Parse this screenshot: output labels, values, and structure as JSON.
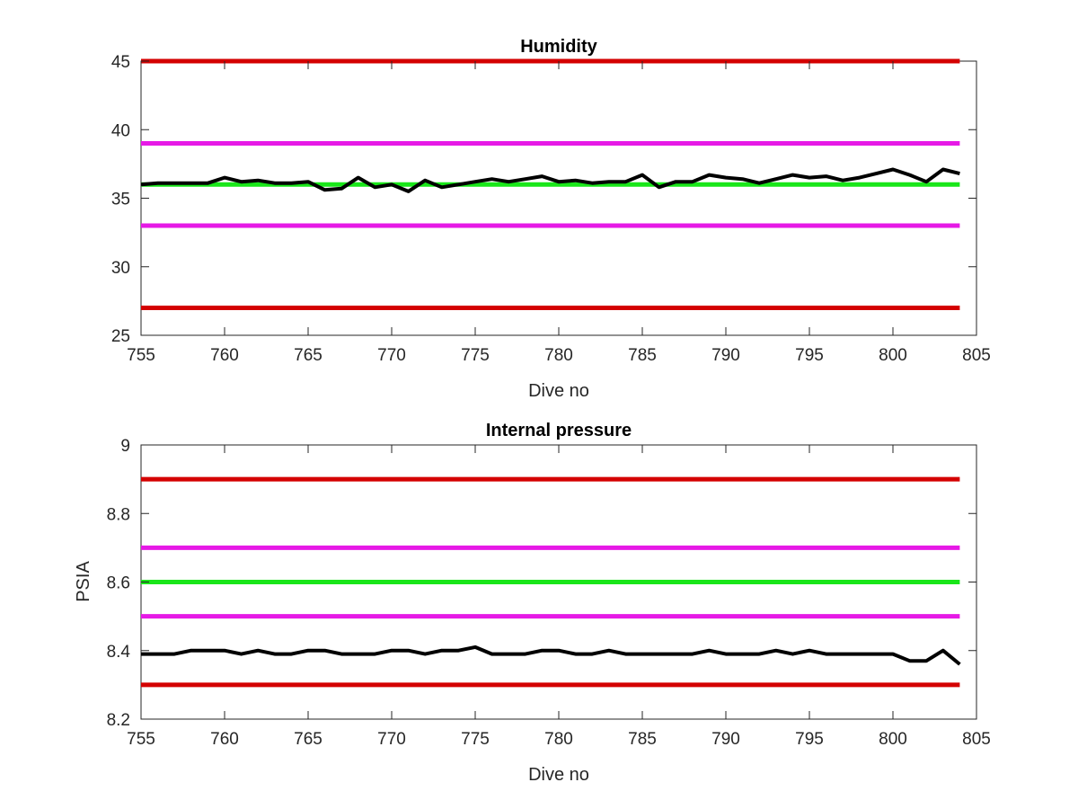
{
  "chart_data": [
    {
      "type": "line",
      "title": "Humidity",
      "xlabel": "Dive no",
      "ylabel": "",
      "xlim": [
        755,
        805
      ],
      "ylim": [
        25,
        45
      ],
      "xticks": [
        "755",
        "760",
        "765",
        "770",
        "775",
        "780",
        "785",
        "790",
        "795",
        "800",
        "805"
      ],
      "yticks": [
        "25",
        "30",
        "35",
        "40",
        "45"
      ],
      "grid": false,
      "thresholds": [
        {
          "value": 45,
          "x": [
            755,
            804
          ],
          "color": "#d40000"
        },
        {
          "value": 39,
          "x": [
            755,
            804
          ],
          "color": "#e619e6"
        },
        {
          "value": 36,
          "x": [
            755,
            804
          ],
          "color": "#19e619"
        },
        {
          "value": 33,
          "x": [
            755,
            804
          ],
          "color": "#e619e6"
        },
        {
          "value": 27,
          "x": [
            755,
            804
          ],
          "color": "#d40000"
        }
      ],
      "series": [
        {
          "color": "#000000",
          "x": [
            755,
            756,
            757,
            758,
            759,
            760,
            761,
            762,
            763,
            764,
            765,
            766,
            767,
            768,
            769,
            770,
            771,
            772,
            773,
            774,
            775,
            776,
            777,
            778,
            779,
            780,
            781,
            782,
            783,
            784,
            785,
            786,
            787,
            788,
            789,
            790,
            791,
            792,
            793,
            794,
            795,
            796,
            797,
            798,
            799,
            800,
            801,
            802,
            803,
            804
          ],
          "y": [
            36.0,
            36.1,
            36.1,
            36.1,
            36.1,
            36.5,
            36.2,
            36.3,
            36.1,
            36.1,
            36.2,
            35.6,
            35.7,
            36.5,
            35.8,
            36.0,
            35.5,
            36.3,
            35.8,
            36.0,
            36.2,
            36.4,
            36.2,
            36.4,
            36.6,
            36.2,
            36.3,
            36.1,
            36.2,
            36.2,
            36.7,
            35.8,
            36.2,
            36.2,
            36.7,
            36.5,
            36.4,
            36.1,
            36.4,
            36.7,
            36.5,
            36.6,
            36.3,
            36.5,
            36.8,
            37.1,
            36.7,
            36.2,
            37.1,
            36.8
          ]
        }
      ]
    },
    {
      "type": "line",
      "title": "Internal pressure",
      "xlabel": "Dive no",
      "ylabel": "PSIA",
      "xlim": [
        755,
        805
      ],
      "ylim": [
        8.2,
        9.0
      ],
      "xticks": [
        "755",
        "760",
        "765",
        "770",
        "775",
        "780",
        "785",
        "790",
        "795",
        "800",
        "805"
      ],
      "yticks": [
        "8.2",
        "8.4",
        "8.6",
        "8.8",
        "9"
      ],
      "grid": false,
      "thresholds": [
        {
          "value": 8.9,
          "x": [
            755,
            804
          ],
          "color": "#d40000"
        },
        {
          "value": 8.7,
          "x": [
            755,
            804
          ],
          "color": "#e619e6"
        },
        {
          "value": 8.6,
          "x": [
            755,
            804
          ],
          "color": "#19e619"
        },
        {
          "value": 8.5,
          "x": [
            755,
            804
          ],
          "color": "#e619e6"
        },
        {
          "value": 8.3,
          "x": [
            755,
            804
          ],
          "color": "#d40000"
        }
      ],
      "series": [
        {
          "color": "#000000",
          "x": [
            755,
            756,
            757,
            758,
            759,
            760,
            761,
            762,
            763,
            764,
            765,
            766,
            767,
            768,
            769,
            770,
            771,
            772,
            773,
            774,
            775,
            776,
            777,
            778,
            779,
            780,
            781,
            782,
            783,
            784,
            785,
            786,
            787,
            788,
            789,
            790,
            791,
            792,
            793,
            794,
            795,
            796,
            797,
            798,
            799,
            800,
            801,
            802,
            803,
            804
          ],
          "y": [
            8.39,
            8.39,
            8.39,
            8.4,
            8.4,
            8.4,
            8.39,
            8.4,
            8.39,
            8.39,
            8.4,
            8.4,
            8.39,
            8.39,
            8.39,
            8.4,
            8.4,
            8.39,
            8.4,
            8.4,
            8.41,
            8.39,
            8.39,
            8.39,
            8.4,
            8.4,
            8.39,
            8.39,
            8.4,
            8.39,
            8.39,
            8.39,
            8.39,
            8.39,
            8.4,
            8.39,
            8.39,
            8.39,
            8.4,
            8.39,
            8.4,
            8.39,
            8.39,
            8.39,
            8.39,
            8.39,
            8.37,
            8.37,
            8.4,
            8.36
          ]
        }
      ]
    }
  ]
}
